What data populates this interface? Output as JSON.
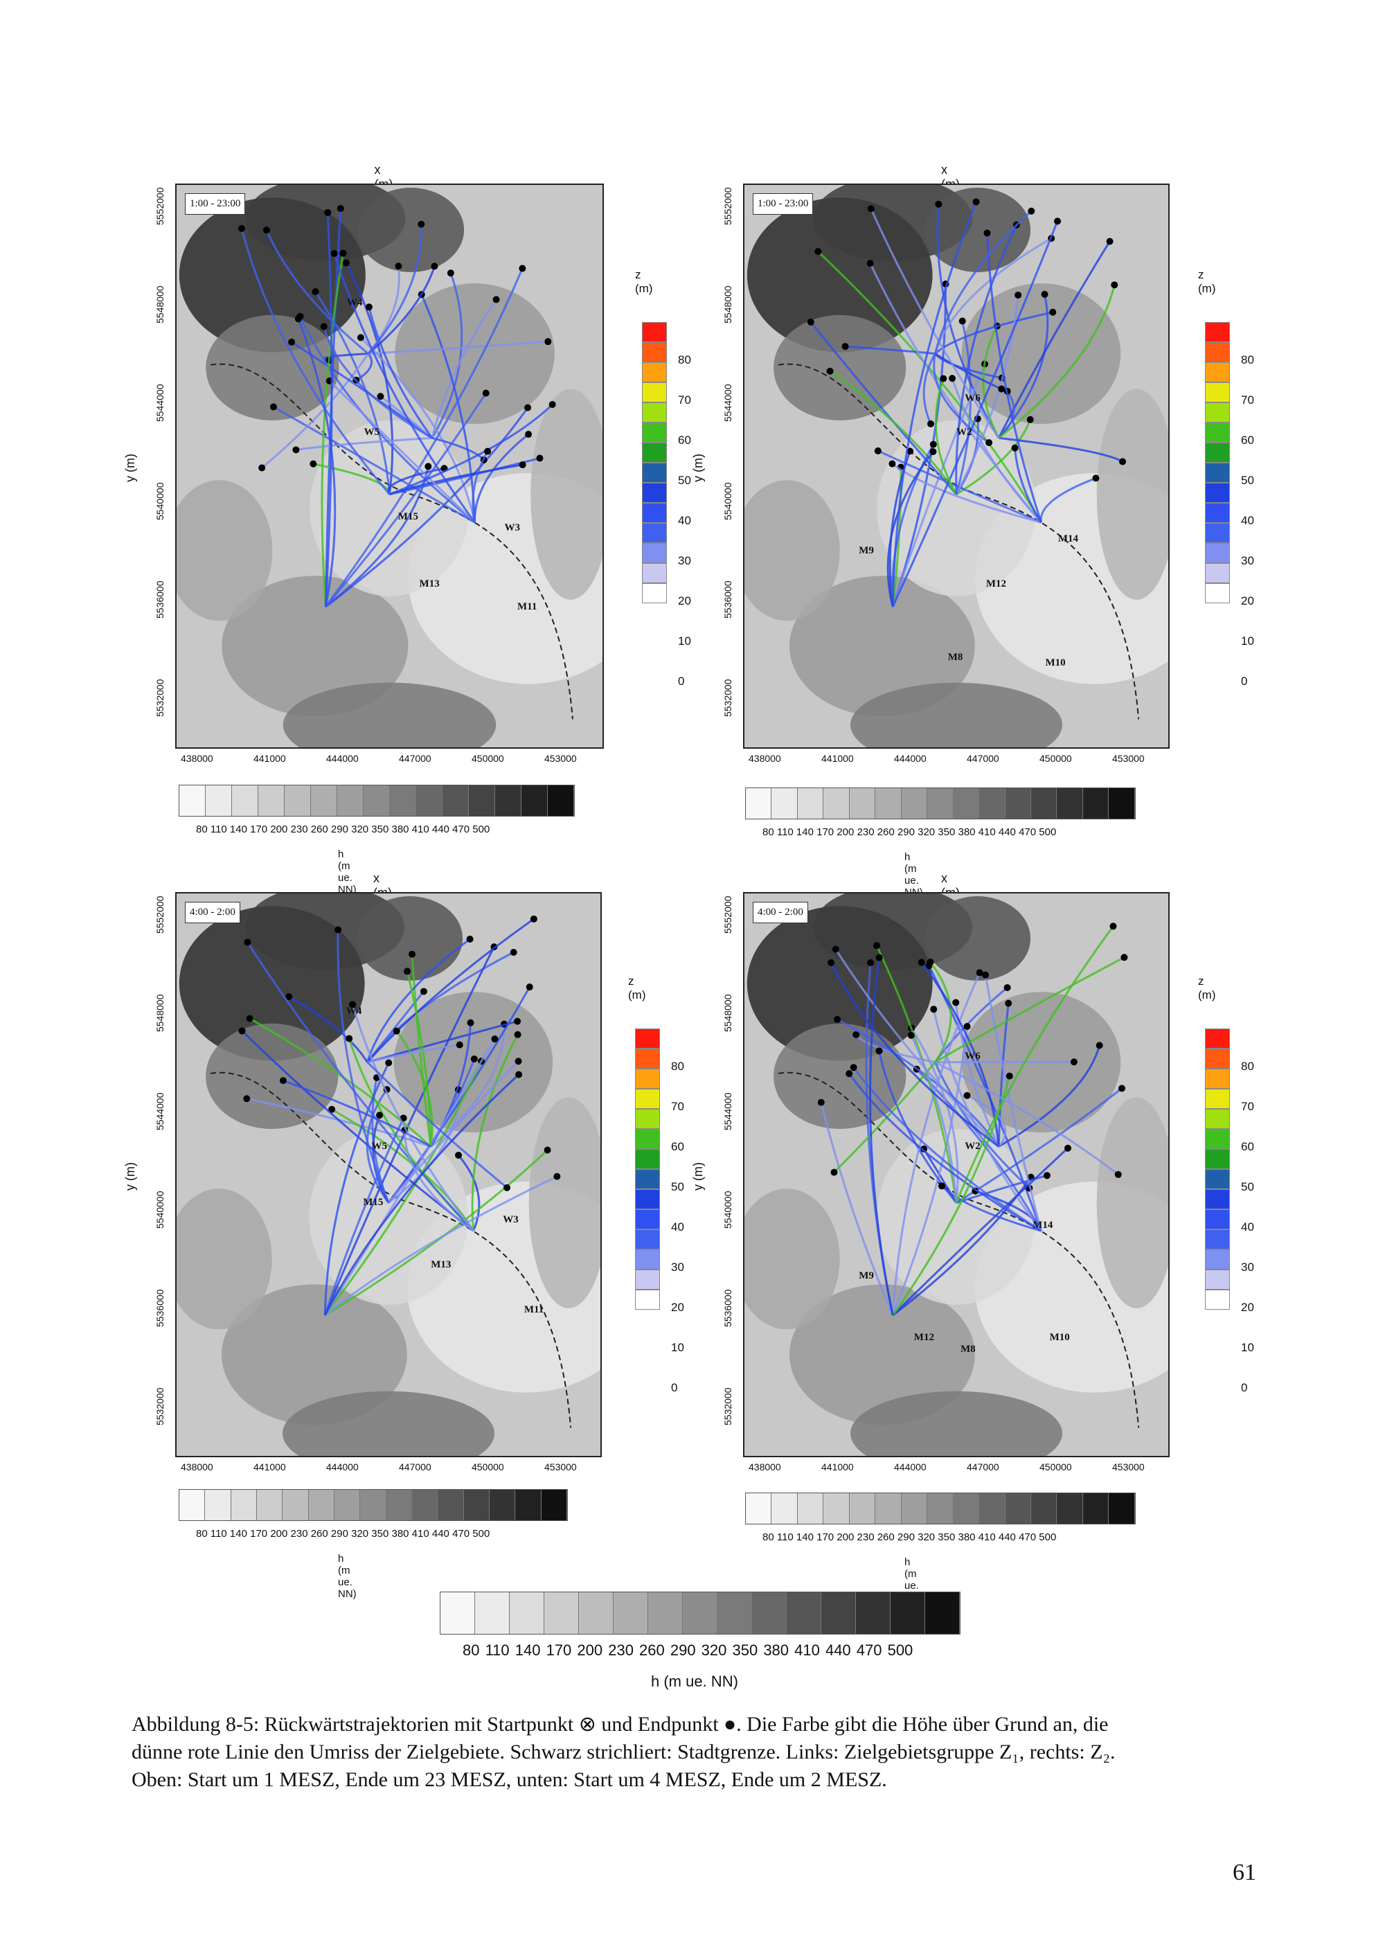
{
  "panels": [
    {
      "id": "top-left",
      "x_axis_title": "x (m)",
      "y_axis_title": "y (m)",
      "time_label": "1:00 - 23:00",
      "x_ticks": [
        "438000",
        "441000",
        "444000",
        "447000",
        "450000",
        "453000"
      ],
      "y_ticks": [
        "5552000",
        "5548000",
        "5544000",
        "5540000",
        "5536000",
        "5532000"
      ],
      "z_title": "z (m)",
      "z_labels": [
        "80",
        "70",
        "60",
        "50",
        "40",
        "30",
        "20",
        "10",
        "0"
      ],
      "h_labels": "80  110 140 170 200 230 260 290 320 350 380 410 440 470 500",
      "h_title": "h (m ue. NN)",
      "areas": [
        "W4",
        "W5",
        "M15",
        "W3",
        "M13",
        "M11"
      ]
    },
    {
      "id": "top-right",
      "x_axis_title": "x (m)",
      "y_axis_title": "y (m)",
      "time_label": "1:00 - 23:00",
      "x_ticks": [
        "438000",
        "441000",
        "444000",
        "447000",
        "450000",
        "453000"
      ],
      "y_ticks": [
        "5552000",
        "5548000",
        "5544000",
        "5540000",
        "5536000",
        "5532000"
      ],
      "z_title": "z (m)",
      "z_labels": [
        "80",
        "70",
        "60",
        "50",
        "40",
        "30",
        "20",
        "10",
        "0"
      ],
      "h_labels": "80  110 140 170 200 230 260 290 320 350 380 410 440 470 500",
      "h_title": "h (m ue. NN)",
      "areas": [
        "W6",
        "W2",
        "M14",
        "M9",
        "M12",
        "M8",
        "M10"
      ]
    },
    {
      "id": "bottom-left",
      "x_axis_title": "x (m)",
      "y_axis_title": "y (m)",
      "time_label": "4:00 - 2:00",
      "x_ticks": [
        "438000",
        "441000",
        "444000",
        "447000",
        "450000",
        "453000"
      ],
      "y_ticks": [
        "5552000",
        "5548000",
        "5544000",
        "5540000",
        "5536000",
        "5532000"
      ],
      "z_title": "z (m)",
      "z_labels": [
        "80",
        "70",
        "60",
        "50",
        "40",
        "30",
        "20",
        "10",
        "0"
      ],
      "h_labels": "80  110 140 170 200 230 260 290 320 350 380 410 440 470 500",
      "h_title": "h (m ue. NN)",
      "areas": [
        "W4",
        "W5",
        "M15",
        "W3",
        "M13",
        "M11"
      ]
    },
    {
      "id": "bottom-right",
      "x_axis_title": "x (m)",
      "y_axis_title": "y (m)",
      "time_label": "4:00 - 2:00",
      "x_ticks": [
        "438000",
        "441000",
        "444000",
        "447000",
        "450000",
        "453000"
      ],
      "y_ticks": [
        "5552000",
        "5548000",
        "5544000",
        "5540000",
        "5536000",
        "5532000"
      ],
      "z_title": "z (m)",
      "z_labels": [
        "80",
        "70",
        "60",
        "50",
        "40",
        "30",
        "20",
        "10",
        "0"
      ],
      "h_labels": "80  110 140 170 200 230 260 290 320 350 380 410 440 470 500",
      "h_title": "h (m ue. NN)",
      "areas": [
        "W6",
        "W2",
        "M14",
        "M9",
        "M12",
        "M8",
        "M10"
      ]
    }
  ],
  "shared_legend": {
    "labels": "80  110  140  170  200  230  260  290  320  350  380  410  440  470  500",
    "title": "h (m ue. NN)"
  },
  "colors": {
    "z_scale": [
      "#ff1a10",
      "#ff5a10",
      "#ffa010",
      "#e8e810",
      "#a0e010",
      "#40c020",
      "#20a020",
      "#2060a8",
      "#2040e0",
      "#3050f0",
      "#4060f0",
      "#8090f0",
      "#c8c8f0",
      "#ffffff"
    ],
    "h_scale": [
      "#f7f7f7",
      "#ebebeb",
      "#dcdcdc",
      "#cdcdcd",
      "#bdbdbd",
      "#aeaeae",
      "#9e9e9e",
      "#8c8c8c",
      "#7a7a7a",
      "#686868",
      "#565656",
      "#444444",
      "#333333",
      "#222222",
      "#111111"
    ]
  },
  "caption": {
    "line1": "Abbildung 8-5: Rückwärtstrajektorien mit Startpunkt ⊗ und Endpunkt ●. Die Farbe gibt die Höhe über Grund an, die",
    "line2": "dünne rote Linie den Umriss der Zielgebiete. Schwarz strichliert: Stadtgrenze. Links: Zielgebietsgruppe Z₁, rechts: Z₂.",
    "line3": "Oben: Start um 1 MESZ, Ende um 23 MESZ, unten: Start um 4 MESZ, Ende um 2 MESZ."
  },
  "page_number": "61"
}
